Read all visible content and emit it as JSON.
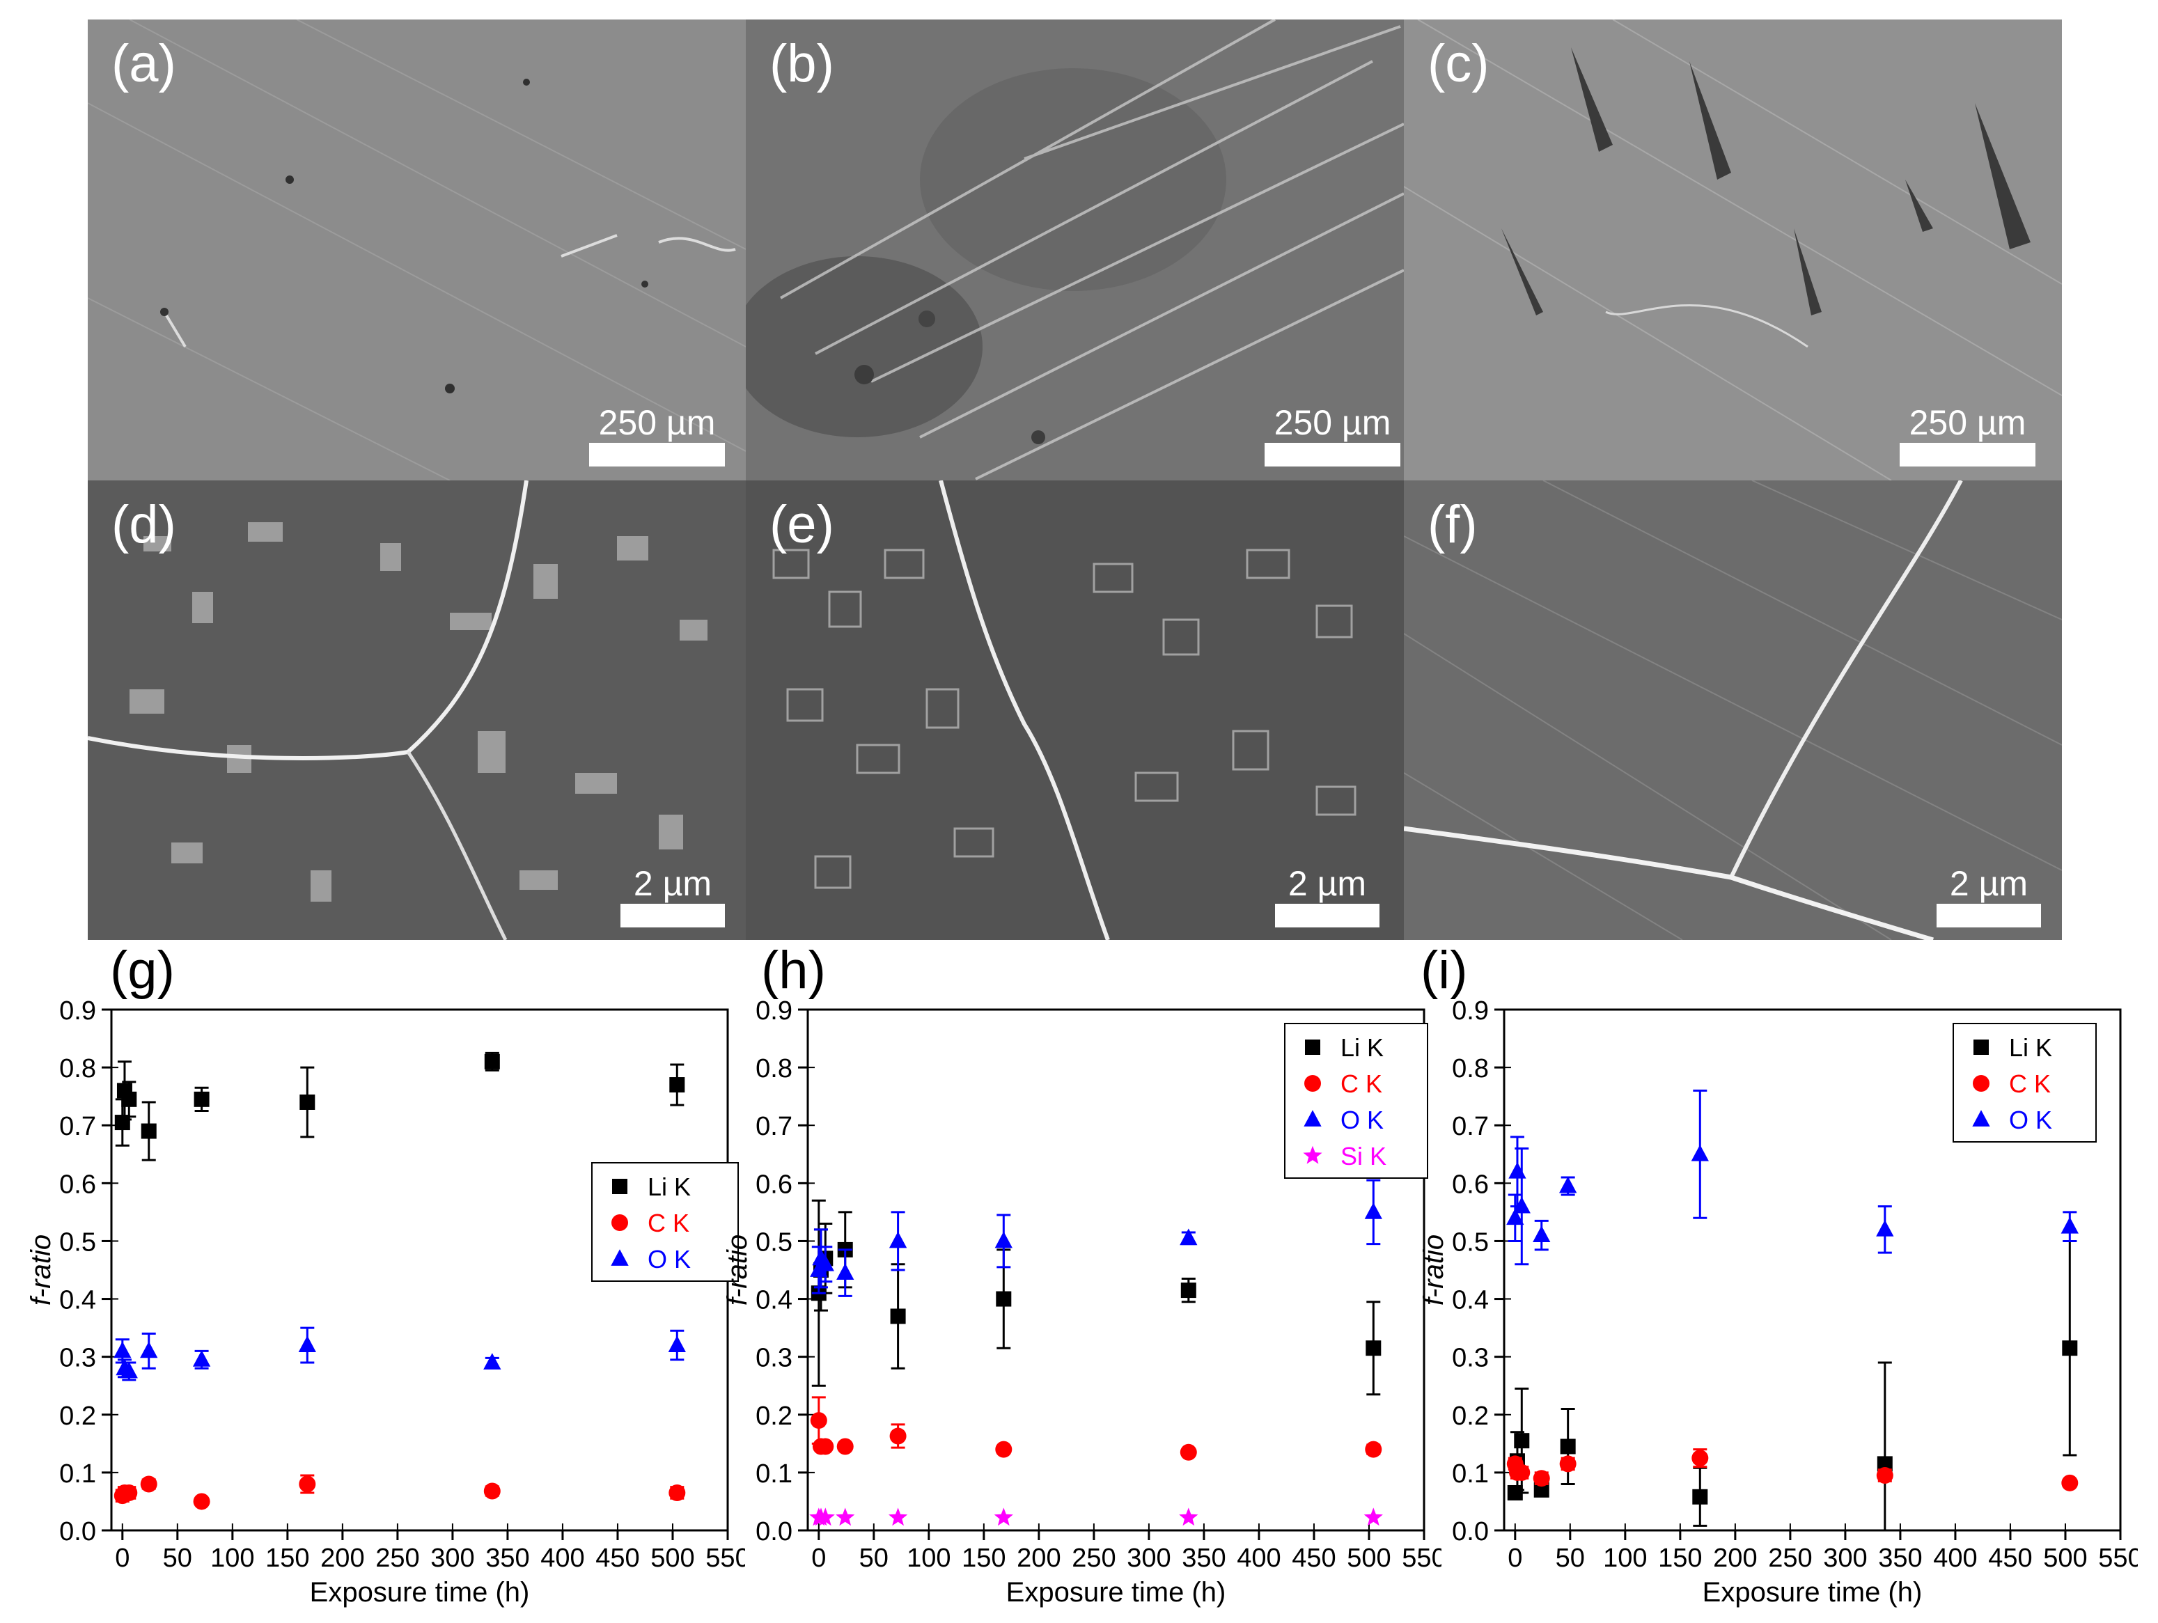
{
  "micrographs": [
    {
      "label": "(a)",
      "scale": "250 µm",
      "tone": "#8a8a8a"
    },
    {
      "label": "(b)",
      "scale": "250 µm",
      "tone": "#6f6f6f"
    },
    {
      "label": "(c)",
      "scale": "250 µm",
      "tone": "#8d8d8d"
    },
    {
      "label": "(d)",
      "scale": "2 µm",
      "tone": "#5a5a5a"
    },
    {
      "label": "(e)",
      "scale": "2 µm",
      "tone": "#525252"
    },
    {
      "label": "(f)",
      "scale": "2 µm",
      "tone": "#6a6a6a"
    }
  ],
  "chart_labels": [
    "(g)",
    "(h)",
    "(i)"
  ],
  "chart_data": [
    {
      "type": "scatter",
      "xlabel": "Exposure time (h)",
      "ylabel": "f-ratio",
      "xlim": [
        -10,
        550
      ],
      "ylim": [
        0,
        0.9
      ],
      "xticks": [
        0,
        50,
        100,
        150,
        200,
        250,
        300,
        350,
        400,
        450,
        500,
        550
      ],
      "yticks": [
        0.0,
        0.1,
        0.2,
        0.3,
        0.4,
        0.5,
        0.6,
        0.7,
        0.8,
        0.9
      ],
      "legend": "right-middle",
      "series": [
        {
          "name": "Li K",
          "marker": "square",
          "color": "#000000",
          "x": [
            0,
            2,
            6,
            24,
            72,
            168,
            336,
            504
          ],
          "y": [
            0.705,
            0.76,
            0.745,
            0.69,
            0.745,
            0.74,
            0.81,
            0.77
          ],
          "err": [
            0.04,
            0.05,
            0.03,
            0.05,
            0.02,
            0.06,
            0.015,
            0.035
          ]
        },
        {
          "name": "C K",
          "marker": "circle",
          "color": "#ff0000",
          "x": [
            0,
            2,
            6,
            24,
            72,
            168,
            336,
            504
          ],
          "y": [
            0.06,
            0.065,
            0.065,
            0.08,
            0.05,
            0.08,
            0.068,
            0.065
          ],
          "err": [
            0.01,
            0.01,
            0.01,
            0.008,
            0.005,
            0.015,
            0.008,
            0.01
          ]
        },
        {
          "name": "O K",
          "marker": "triangle",
          "color": "#0000ff",
          "x": [
            0,
            2,
            6,
            24,
            72,
            168,
            336,
            504
          ],
          "y": [
            0.31,
            0.28,
            0.275,
            0.31,
            0.295,
            0.32,
            0.29,
            0.32
          ],
          "err": [
            0.02,
            0.015,
            0.015,
            0.03,
            0.015,
            0.03,
            0.008,
            0.025
          ]
        }
      ]
    },
    {
      "type": "scatter",
      "xlabel": "Exposure time (h)",
      "ylabel": "f-ratio",
      "xlim": [
        -10,
        550
      ],
      "ylim": [
        0,
        0.9
      ],
      "xticks": [
        0,
        50,
        100,
        150,
        200,
        250,
        300,
        350,
        400,
        450,
        500,
        550
      ],
      "yticks": [
        0.0,
        0.1,
        0.2,
        0.3,
        0.4,
        0.5,
        0.6,
        0.7,
        0.8,
        0.9
      ],
      "legend": "top-right",
      "series": [
        {
          "name": "Li K",
          "marker": "square",
          "color": "#000000",
          "x": [
            0,
            2,
            6,
            24,
            72,
            168,
            336,
            504
          ],
          "y": [
            0.41,
            0.45,
            0.47,
            0.485,
            0.37,
            0.4,
            0.415,
            0.315
          ],
          "err": [
            0.16,
            0.07,
            0.06,
            0.065,
            0.09,
            0.085,
            0.02,
            0.08
          ]
        },
        {
          "name": "C K",
          "marker": "circle",
          "color": "#ff0000",
          "x": [
            0,
            2,
            6,
            24,
            72,
            168,
            336,
            504
          ],
          "y": [
            0.19,
            0.145,
            0.145,
            0.145,
            0.163,
            0.14,
            0.135,
            0.14
          ],
          "err": [
            0.04,
            0.005,
            0.005,
            0.005,
            0.02,
            0.005,
            0.005,
            0.008
          ]
        },
        {
          "name": "O K",
          "marker": "triangle",
          "color": "#0000ff",
          "x": [
            0,
            2,
            6,
            24,
            72,
            168,
            336,
            504
          ],
          "y": [
            0.45,
            0.47,
            0.46,
            0.445,
            0.5,
            0.5,
            0.505,
            0.55
          ],
          "err": [
            0.04,
            0.05,
            0.03,
            0.04,
            0.05,
            0.045,
            0.01,
            0.055
          ]
        },
        {
          "name": "Si K",
          "marker": "star",
          "color": "#ff00ff",
          "x": [
            0,
            2,
            6,
            24,
            72,
            168,
            336,
            504
          ],
          "y": [
            0.022,
            0.022,
            0.022,
            0.022,
            0.022,
            0.022,
            0.022,
            0.022
          ],
          "err": [
            0,
            0,
            0,
            0,
            0,
            0,
            0,
            0
          ]
        }
      ]
    },
    {
      "type": "scatter",
      "xlabel": "Exposure time (h)",
      "ylabel": "f-ratio",
      "xlim": [
        -10,
        550
      ],
      "ylim": [
        0,
        0.9
      ],
      "xticks": [
        0,
        50,
        100,
        150,
        200,
        250,
        300,
        350,
        400,
        450,
        500,
        550
      ],
      "yticks": [
        0.0,
        0.1,
        0.2,
        0.3,
        0.4,
        0.5,
        0.6,
        0.7,
        0.8,
        0.9
      ],
      "legend": "top-right",
      "series": [
        {
          "name": "Li K",
          "marker": "square",
          "color": "#000000",
          "x": [
            0,
            2,
            6,
            24,
            48,
            168,
            336,
            504
          ],
          "y": [
            0.065,
            0.12,
            0.155,
            0.07,
            0.145,
            0.058,
            0.115,
            0.315
          ],
          "err": [
            0.01,
            0.05,
            0.09,
            0.01,
            0.065,
            0.05,
            0.175,
            0.185
          ]
        },
        {
          "name": "C K",
          "marker": "circle",
          "color": "#ff0000",
          "x": [
            0,
            2,
            6,
            24,
            48,
            168,
            336,
            504
          ],
          "y": [
            0.115,
            0.1,
            0.1,
            0.09,
            0.115,
            0.125,
            0.095,
            0.082
          ],
          "err": [
            0.01,
            0.01,
            0.01,
            0.01,
            0.01,
            0.015,
            0.01,
            0.005
          ]
        },
        {
          "name": "O K",
          "marker": "triangle",
          "color": "#0000ff",
          "x": [
            0,
            2,
            6,
            24,
            48,
            168,
            336,
            504
          ],
          "y": [
            0.54,
            0.62,
            0.56,
            0.51,
            0.595,
            0.65,
            0.52,
            0.525
          ],
          "err": [
            0.04,
            0.06,
            0.1,
            0.025,
            0.015,
            0.11,
            0.04,
            0.025
          ]
        }
      ]
    }
  ]
}
